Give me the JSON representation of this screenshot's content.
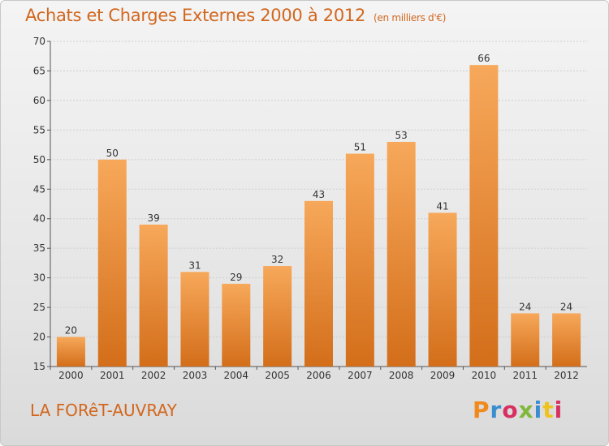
{
  "header": {
    "title": "Achats et Charges Externes 2000 à 2012",
    "unit": "(en milliers d'€)"
  },
  "footer": {
    "commune": "LA FORêT-AUVRAY",
    "logo_letters": [
      "P",
      "r",
      "o",
      "x",
      "i",
      "t",
      "i"
    ],
    "logo_colors": [
      "#f08a1c",
      "#3a8ed0",
      "#d72f62",
      "#7fb83a",
      "#3a8ed0",
      "#f0c21c",
      "#d72f62"
    ]
  },
  "chart_data": {
    "type": "bar",
    "title": "Achats et Charges Externes 2000 à 2012",
    "subtitle": "(en milliers d'€)",
    "xlabel": "",
    "ylabel": "",
    "categories": [
      "2000",
      "2001",
      "2002",
      "2003",
      "2004",
      "2005",
      "2006",
      "2007",
      "2008",
      "2009",
      "2010",
      "2011",
      "2012"
    ],
    "values": [
      20,
      50,
      39,
      31,
      29,
      32,
      43,
      51,
      53,
      41,
      66,
      24,
      24
    ],
    "ylim": [
      15,
      70
    ],
    "yticks": [
      15,
      20,
      25,
      30,
      35,
      40,
      45,
      50,
      55,
      60,
      65,
      70
    ],
    "grid": true,
    "data_labels": true,
    "colors": {
      "bar_light": "#f7a85a",
      "bar_dark": "#d36e1a",
      "grid": "#cfcfcf",
      "text": "#333333"
    }
  }
}
